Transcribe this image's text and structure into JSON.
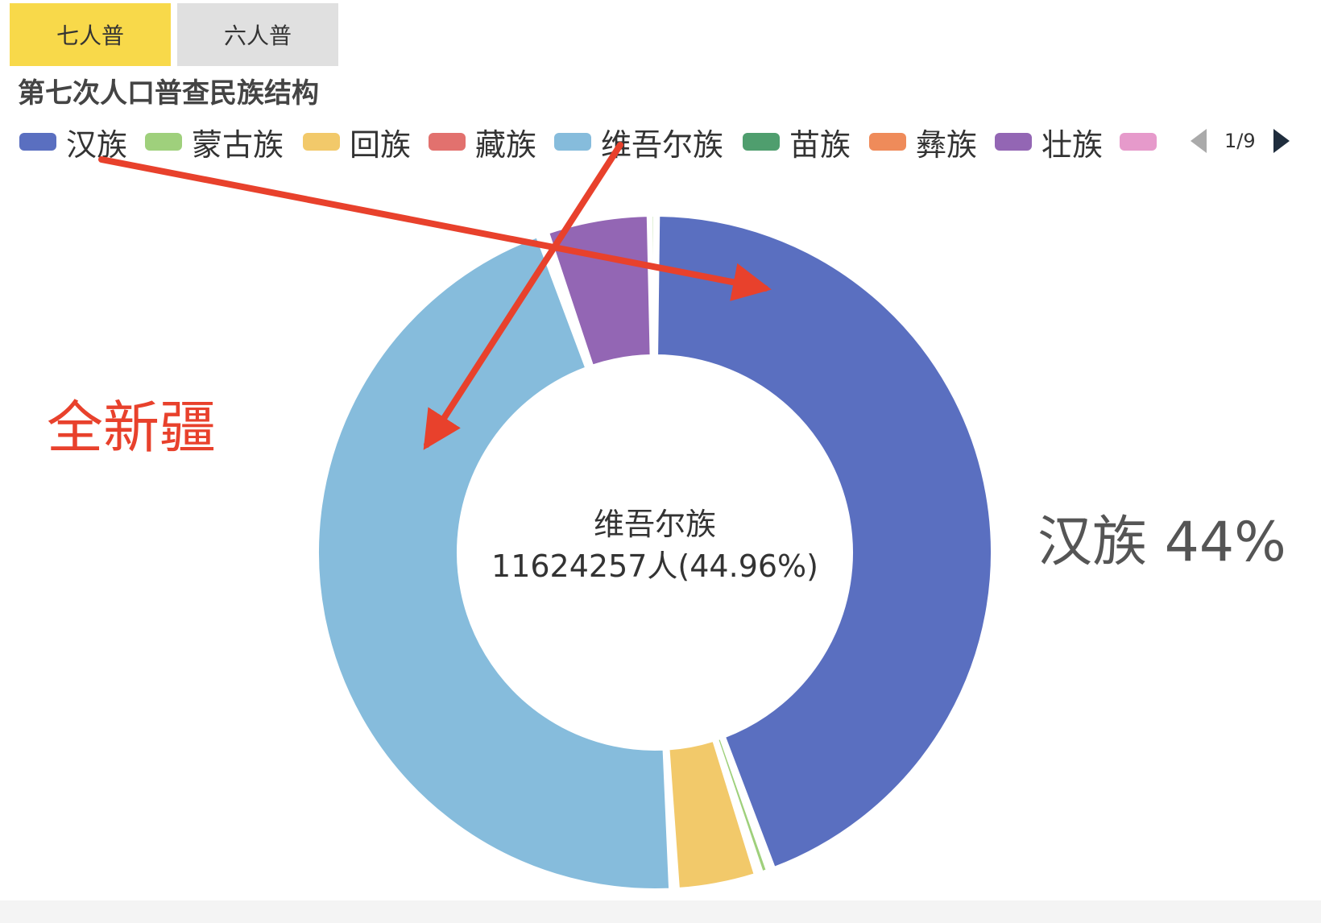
{
  "tabs": [
    {
      "label": "七人普",
      "active": true
    },
    {
      "label": "六人普",
      "active": false
    }
  ],
  "legend_pager": "1/9",
  "colors": {
    "active_tab": "#f8d94a",
    "inactive_tab": "#e0e0e0",
    "annotation": "#e8412c"
  },
  "chart_data": {
    "type": "pie",
    "title": "第七次人口普查民族结构",
    "donut": true,
    "slices": [
      {
        "name": "汉族",
        "value": 44,
        "color": "#5a6fc0"
      },
      {
        "name": "蒙古族",
        "value": 0.6,
        "color": "#9fd07c"
      },
      {
        "name": "回族",
        "value": 4,
        "color": "#f2c96a"
      },
      {
        "name": "藏族",
        "value": 0.05,
        "color": "#e2716e"
      },
      {
        "name": "维吾尔族",
        "value": 44.96,
        "color": "#86bcdc"
      },
      {
        "name": "苗族",
        "value": 0.05,
        "color": "#4f9e6e"
      },
      {
        "name": "彝族",
        "value": 0.05,
        "color": "#ef8b5a"
      },
      {
        "name": "壮族",
        "value": 0.05,
        "color": "#9366b4"
      },
      {
        "name": "",
        "value": 0.05,
        "color": "#e69acb"
      },
      {
        "name": "",
        "value": 5.1,
        "color": "#9366b4"
      },
      {
        "name": "",
        "value": 0.09,
        "color": "#9fd07c"
      },
      {
        "name": "",
        "value": 0.06,
        "color": "#86bcdc"
      }
    ],
    "center_label": {
      "name": "维吾尔族",
      "detail": "11624257人(44.96%)"
    },
    "side_label": "汉族 44%",
    "annotation_text": "全新疆"
  }
}
